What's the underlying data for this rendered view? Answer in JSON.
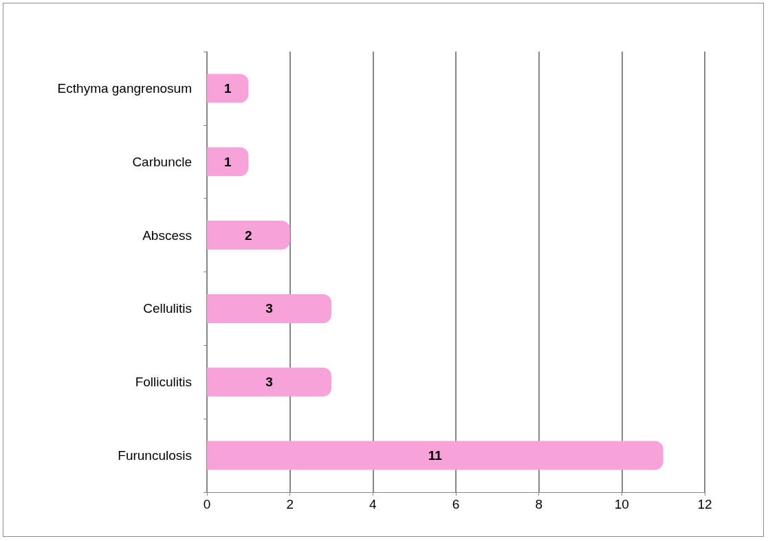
{
  "chart_data": {
    "type": "bar",
    "orientation": "horizontal",
    "categories": [
      "Ecthyma gangrenosum",
      "Carbuncle",
      "Abscess",
      "Cellulitis",
      "Folliculitis",
      "Furunculosis"
    ],
    "values": [
      1,
      1,
      2,
      3,
      3,
      11
    ],
    "color": "#f7a3d9",
    "xlim": [
      0,
      12
    ],
    "xticks": [
      0,
      2,
      4,
      6,
      8,
      10,
      12
    ],
    "grid": "x",
    "data_labels": true
  }
}
